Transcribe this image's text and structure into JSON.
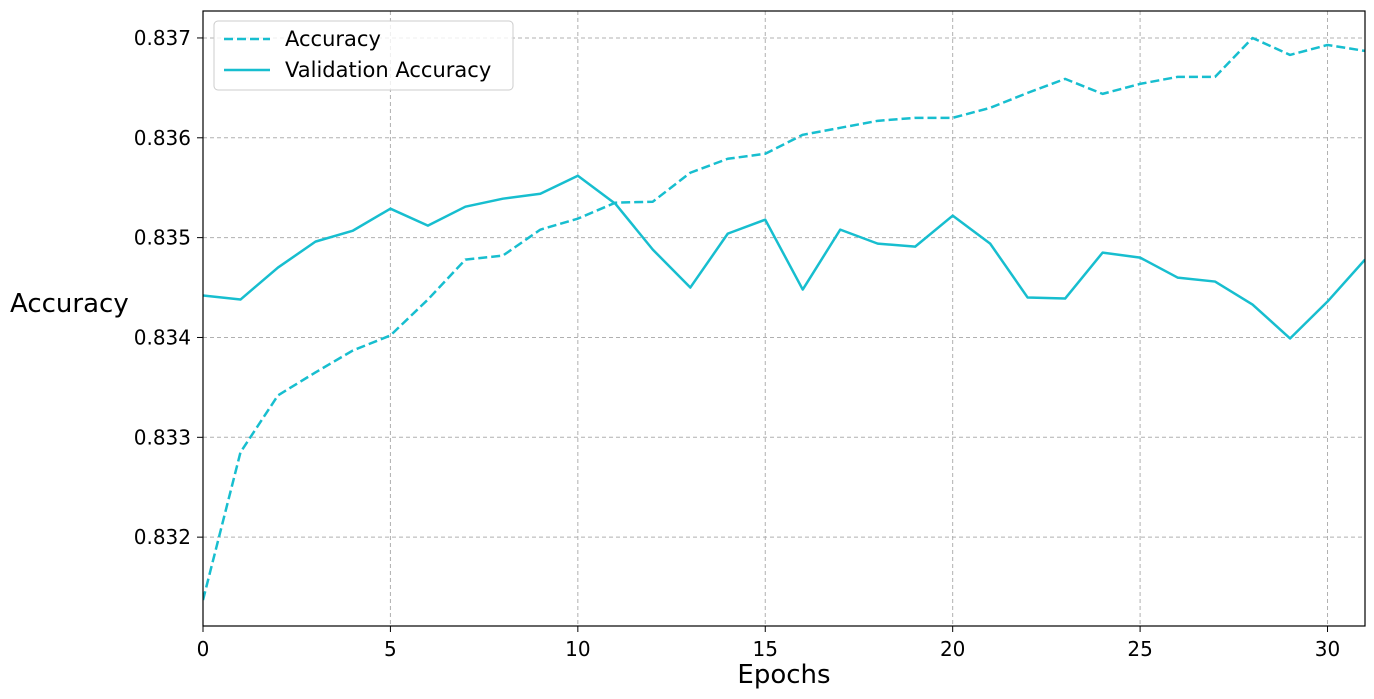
{
  "chart_data": {
    "type": "line",
    "title": "",
    "xlabel": "Epochs",
    "ylabel": "Accuracy",
    "xlim": [
      0,
      31
    ],
    "ylim": [
      0.83111,
      0.83727
    ],
    "xticks": [
      0,
      5,
      10,
      15,
      20,
      25,
      30
    ],
    "yticks": [
      0.832,
      0.833,
      0.834,
      0.835,
      0.836,
      0.837
    ],
    "xtick_labels": [
      "0",
      "5",
      "10",
      "15",
      "20",
      "25",
      "30"
    ],
    "ytick_labels": [
      "0.832",
      "0.833",
      "0.834",
      "0.835",
      "0.836",
      "0.837"
    ],
    "grid": true,
    "legend_position": "top-left",
    "color": "#17becf",
    "x": [
      0,
      1,
      2,
      3,
      4,
      5,
      6,
      7,
      8,
      9,
      10,
      11,
      12,
      13,
      14,
      15,
      16,
      17,
      18,
      19,
      20,
      21,
      22,
      23,
      24,
      25,
      26,
      27,
      28,
      29,
      30,
      31
    ],
    "series": [
      {
        "name": "Accuracy",
        "style": "dashed",
        "values": [
          0.83137,
          0.83285,
          0.83342,
          0.83365,
          0.83387,
          0.83402,
          0.83438,
          0.83478,
          0.83482,
          0.83508,
          0.83519,
          0.83535,
          0.83536,
          0.83565,
          0.83579,
          0.83584,
          0.83603,
          0.8361,
          0.83617,
          0.8362,
          0.8362,
          0.8363,
          0.83645,
          0.83659,
          0.83644,
          0.83654,
          0.83661,
          0.83661,
          0.837,
          0.83683,
          0.83693,
          0.83687
        ]
      },
      {
        "name": "Validation Accuracy",
        "style": "solid",
        "values": [
          0.83442,
          0.83438,
          0.8347,
          0.83496,
          0.83507,
          0.83529,
          0.83512,
          0.83531,
          0.83539,
          0.83544,
          0.83562,
          0.83534,
          0.83488,
          0.8345,
          0.83504,
          0.83518,
          0.83448,
          0.83508,
          0.83494,
          0.83491,
          0.83522,
          0.83494,
          0.8344,
          0.83439,
          0.83485,
          0.8348,
          0.8346,
          0.83456,
          0.83433,
          0.83399,
          0.83436,
          0.83478
        ]
      }
    ]
  }
}
